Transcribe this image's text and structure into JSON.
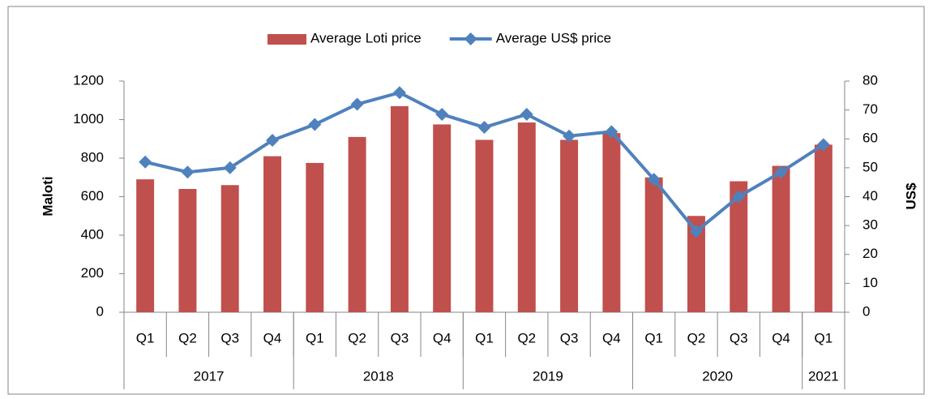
{
  "chart_data": {
    "type": "bar-line",
    "categories": [
      "Q1",
      "Q2",
      "Q3",
      "Q4",
      "Q1",
      "Q2",
      "Q3",
      "Q4",
      "Q1",
      "Q2",
      "Q3",
      "Q4",
      "Q1",
      "Q2",
      "Q3",
      "Q4",
      "Q1"
    ],
    "groups": [
      {
        "label": "2017",
        "span": 4
      },
      {
        "label": "2018",
        "span": 4
      },
      {
        "label": "2019",
        "span": 4
      },
      {
        "label": "2020",
        "span": 4
      },
      {
        "label": "2021",
        "span": 1
      }
    ],
    "series": [
      {
        "name": "Average Loti price",
        "type": "bar",
        "axis": "y",
        "color": "#c0504d",
        "values": [
          690,
          640,
          660,
          810,
          775,
          910,
          1070,
          975,
          895,
          985,
          895,
          930,
          700,
          500,
          680,
          760,
          870
        ]
      },
      {
        "name": "Average US$ price",
        "type": "line",
        "axis": "y2",
        "color": "#4f81bd",
        "values": [
          52,
          48.5,
          50,
          59.5,
          65,
          72,
          76,
          68.5,
          64,
          68.5,
          61,
          62.5,
          46,
          28,
          40,
          48.5,
          58
        ]
      }
    ],
    "ylabel": "Maloti",
    "y2label": "US$",
    "ylim": [
      0,
      1200
    ],
    "yticks": [
      0,
      200,
      400,
      600,
      800,
      1000,
      1200
    ],
    "y2lim": [
      0,
      80
    ],
    "y2ticks": [
      0,
      10,
      20,
      30,
      40,
      50,
      60,
      70,
      80
    ],
    "legend": "top",
    "grid": false
  }
}
